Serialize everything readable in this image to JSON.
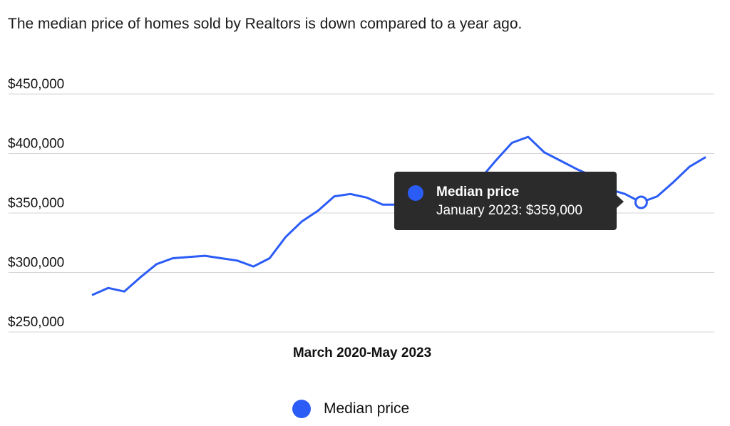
{
  "headline": "The median price of homes sold by Realtors is down compared to a year ago.",
  "colors": {
    "series": "#2b5cf6",
    "grid": "#d6d6d6",
    "tooltip_bg": "#2b2b2b"
  },
  "tooltip": {
    "series": "Median price",
    "text": "January 2023: $359,000"
  },
  "legend": {
    "label": "Median price",
    "position": "bottom"
  },
  "chart_data": {
    "type": "line",
    "title": "",
    "xlabel": "March 2020-May 2023",
    "ylabel": "",
    "ylim": [
      250000,
      450000
    ],
    "yticks": [
      "$250,000",
      "$300,000",
      "$350,000",
      "$400,000",
      "$450,000"
    ],
    "ytick_values": [
      250000,
      300000,
      350000,
      400000,
      450000
    ],
    "grid": true,
    "x": [
      "2020-03",
      "2020-04",
      "2020-05",
      "2020-06",
      "2020-07",
      "2020-08",
      "2020-09",
      "2020-10",
      "2020-11",
      "2020-12",
      "2021-01",
      "2021-02",
      "2021-03",
      "2021-04",
      "2021-05",
      "2021-06",
      "2021-07",
      "2021-08",
      "2021-09",
      "2021-10",
      "2021-11",
      "2021-12",
      "2022-01",
      "2022-02",
      "2022-03",
      "2022-04",
      "2022-05",
      "2022-06",
      "2022-07",
      "2022-08",
      "2022-09",
      "2022-10",
      "2022-11",
      "2022-12",
      "2023-01",
      "2023-02",
      "2023-03",
      "2023-04",
      "2023-05"
    ],
    "series": [
      {
        "name": "Median price",
        "values": [
          281000,
          287000,
          284000,
          296000,
          307000,
          312000,
          313000,
          314000,
          312000,
          310000,
          305000,
          312000,
          330000,
          343000,
          352000,
          364000,
          366000,
          363000,
          357000,
          357000,
          356000,
          357000,
          357000,
          363000,
          378000,
          394000,
          409000,
          414000,
          401000,
          394000,
          387000,
          381000,
          370000,
          366000,
          359000,
          364000,
          376000,
          389000,
          397000
        ]
      }
    ],
    "highlight": {
      "x": "2023-01",
      "value": 359000
    }
  }
}
